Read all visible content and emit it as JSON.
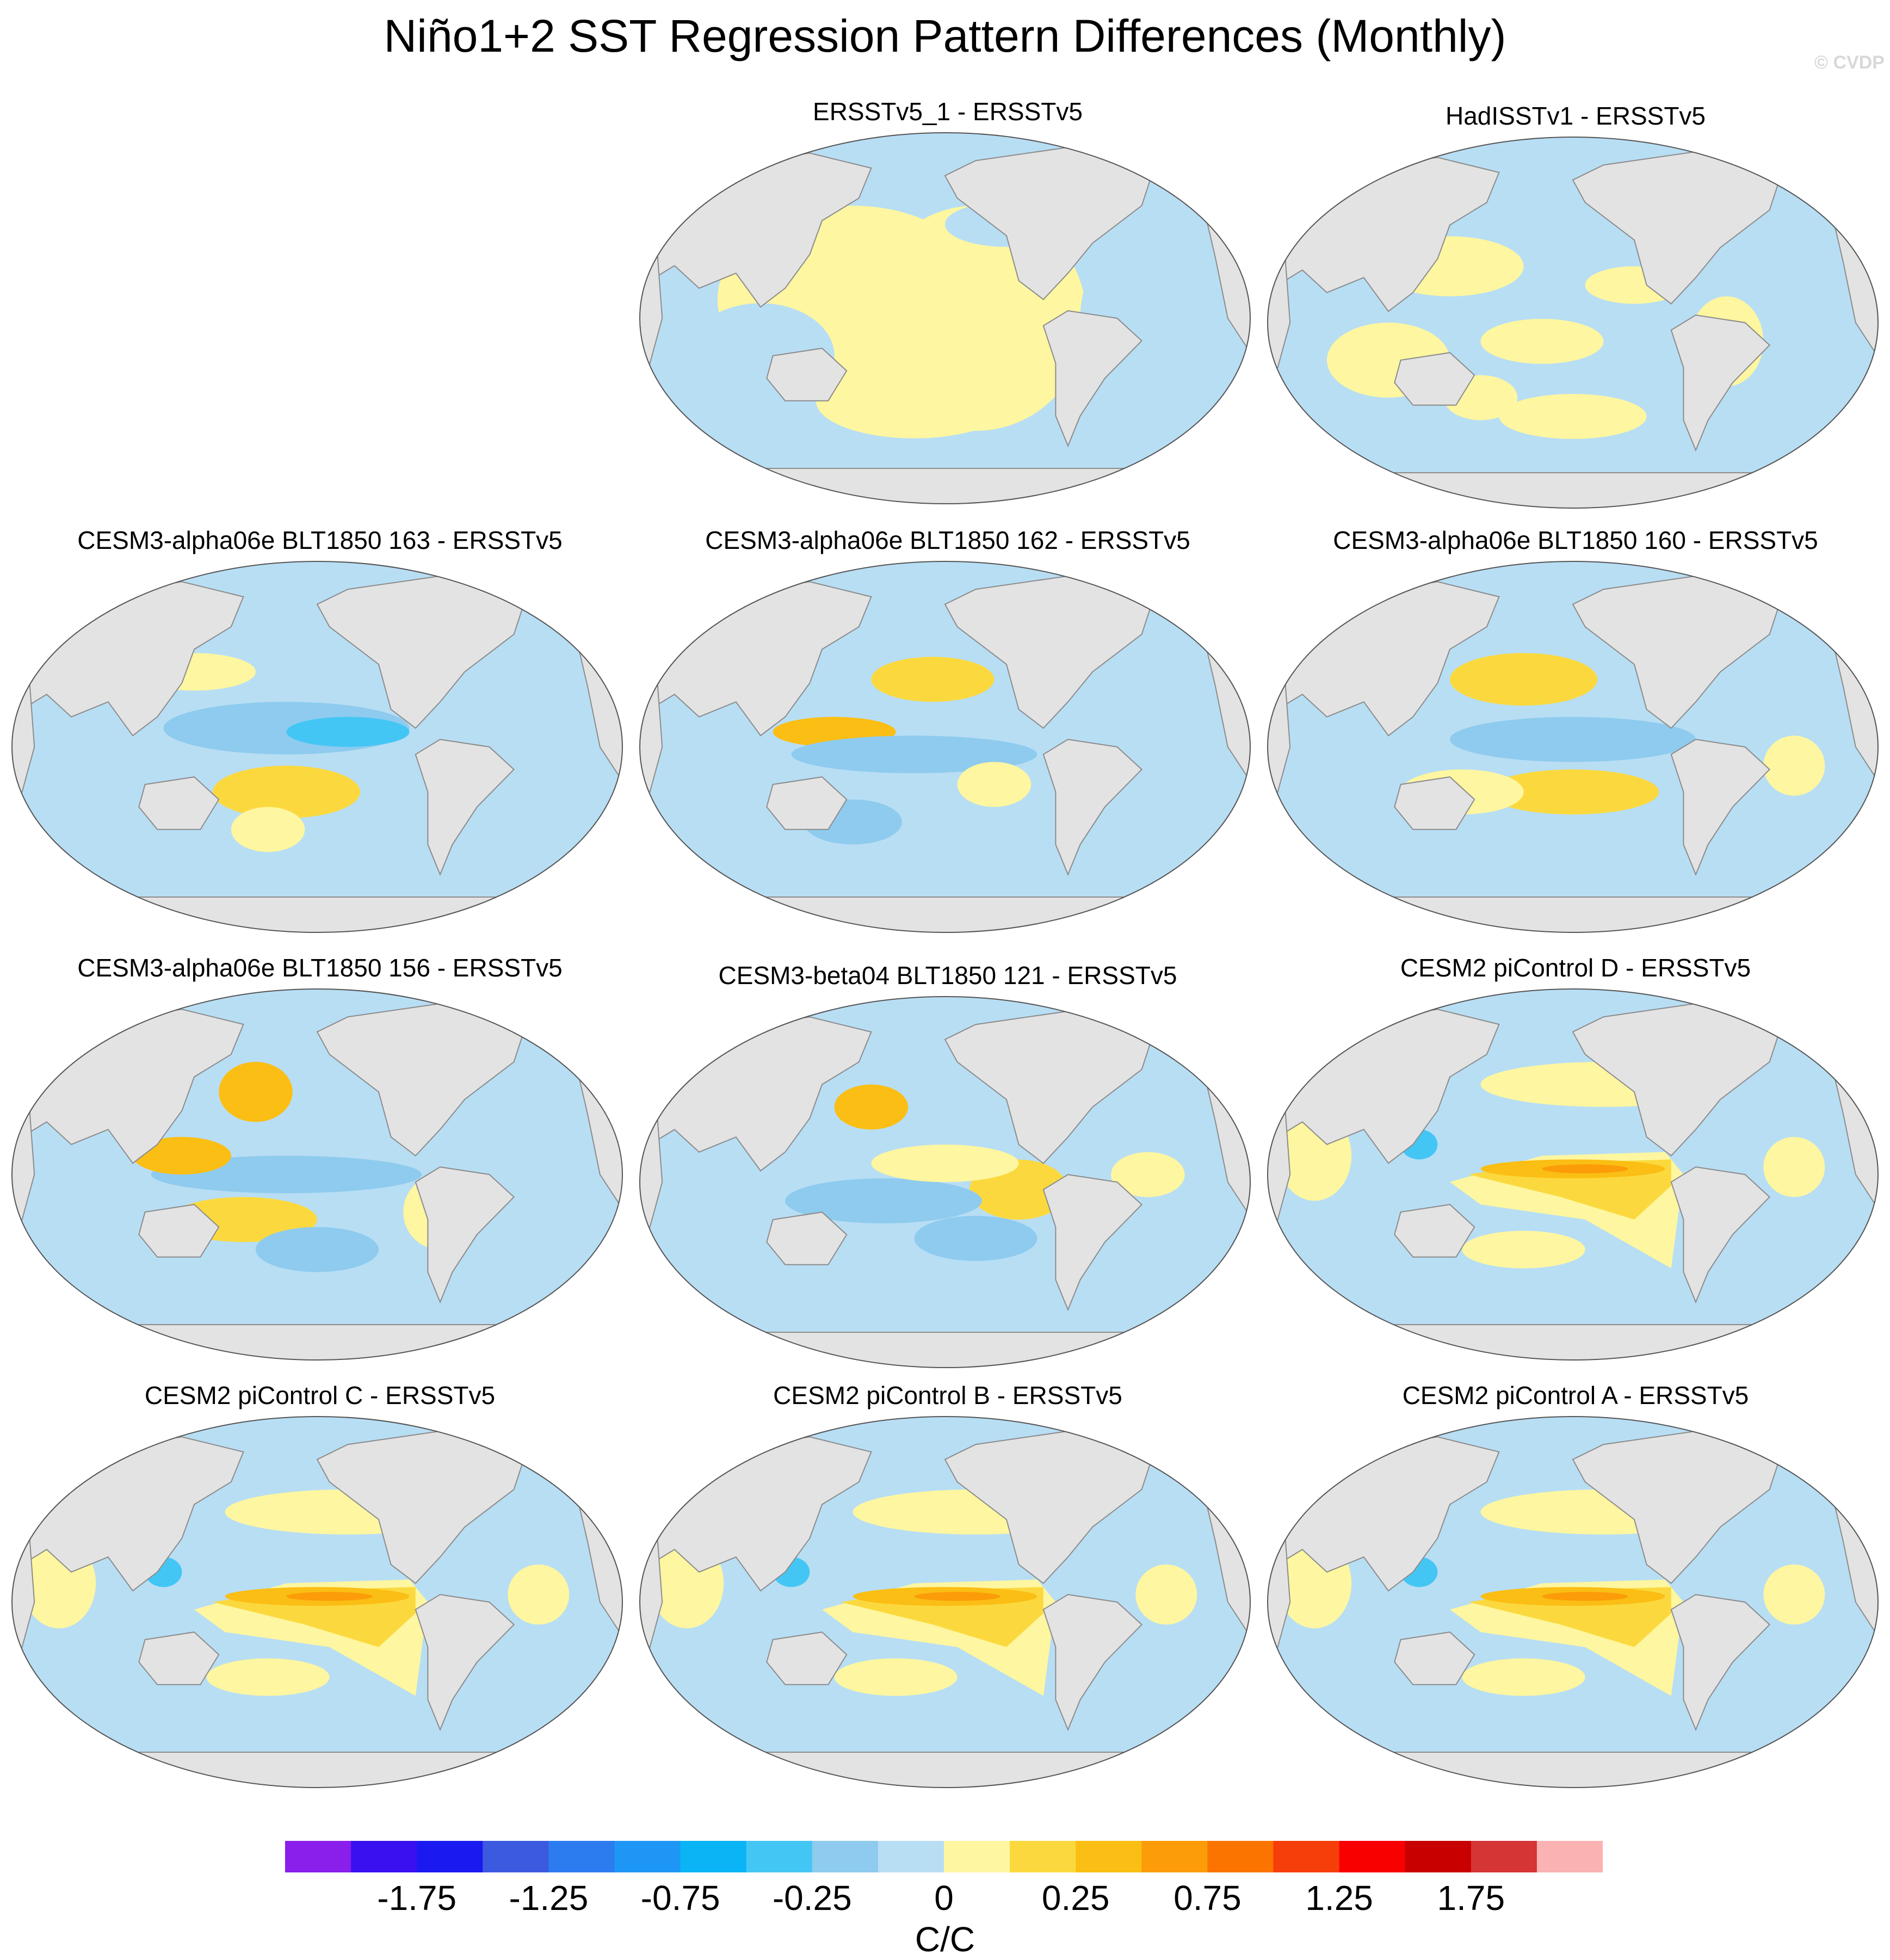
{
  "title": "Niño1+2 SST Regression Pattern Differences (Monthly)",
  "watermark": "© CVDP",
  "projection": "Robinson, Pacific-centered",
  "panels": [
    {
      "title": "ERSSTv5_1 - ERSSTv5",
      "pattern": "weak"
    },
    {
      "title": "HadISSTv1 - ERSSTv5",
      "pattern": "weak2"
    },
    {
      "title": "CESM3-alpha06e BLT1850 163 - ERSSTv5",
      "pattern": "alpha163"
    },
    {
      "title": "CESM3-alpha06e BLT1850 162 - ERSSTv5",
      "pattern": "alpha162"
    },
    {
      "title": "CESM3-alpha06e BLT1850 160 - ERSSTv5",
      "pattern": "alpha160"
    },
    {
      "title": "CESM3-alpha06e BLT1850 156 - ERSSTv5",
      "pattern": "alpha156"
    },
    {
      "title": "CESM3-beta04 BLT1850 121 - ERSSTv5",
      "pattern": "beta121"
    },
    {
      "title": "CESM2 piControl D - ERSSTv5",
      "pattern": "cesm2"
    },
    {
      "title": "CESM2 piControl C - ERSSTv5",
      "pattern": "cesm2"
    },
    {
      "title": "CESM2 piControl B - ERSSTv5",
      "pattern": "cesm2"
    },
    {
      "title": "CESM2 piControl A - ERSSTv5",
      "pattern": "cesm2"
    }
  ],
  "colorbar": {
    "colors": [
      "#8a1eea",
      "#3a10f0",
      "#1a1af0",
      "#3c5ae0",
      "#2c7cf0",
      "#1e96f5",
      "#0ab4f5",
      "#44c6f5",
      "#8ecbee",
      "#b8def4",
      "#fef6a0",
      "#fbd93e",
      "#fbbe14",
      "#fb9c08",
      "#fb7400",
      "#f63e0a",
      "#f80000",
      "#c80000",
      "#d53535",
      "#fbb2b2"
    ],
    "labels": [
      "-1.75",
      "-1.25",
      "-0.75",
      "-0.25",
      "0",
      "0.25",
      "0.75",
      "1.25",
      "1.75"
    ],
    "units": "C/C"
  }
}
